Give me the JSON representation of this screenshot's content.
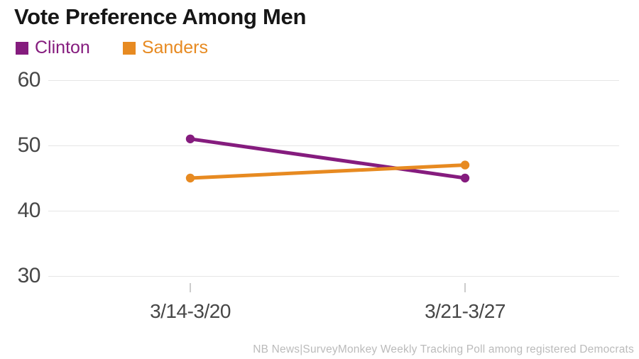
{
  "header": {
    "title": "Vote Preference Among Men"
  },
  "legend": {
    "items": [
      {
        "label": "Clinton",
        "color": "#851C7E",
        "swatch_icon": "square-swatch"
      },
      {
        "label": "Sanders",
        "color": "#E78A21",
        "swatch_icon": "square-swatch"
      }
    ]
  },
  "footer": {
    "source": "NB News|SurveyMonkey Weekly Tracking Poll among registered Democrats"
  },
  "colors": {
    "clinton": "#851C7E",
    "sanders": "#E78A21",
    "gridline": "#E6E6E6",
    "tick": "#CCCCCC",
    "axis_text": "#474747",
    "title_text": "#161616",
    "source_text": "#BBBBBB",
    "background": "#FFFFFF"
  },
  "chart_data": {
    "type": "line",
    "title": "Vote Preference Among Men",
    "categories": [
      "3/14-3/20",
      "3/21-3/27"
    ],
    "series": [
      {
        "name": "Clinton",
        "color": "#851C7E",
        "values": [
          51,
          45
        ]
      },
      {
        "name": "Sanders",
        "color": "#E78A21",
        "values": [
          45,
          47
        ]
      }
    ],
    "xlabel": "",
    "ylabel": "",
    "ylim": [
      30,
      60
    ],
    "yticks": [
      60,
      50,
      40,
      30
    ],
    "grid": true,
    "markers": true,
    "legend_position": "top-left",
    "source": "NB News|SurveyMonkey Weekly Tracking Poll among registered Democrats"
  }
}
